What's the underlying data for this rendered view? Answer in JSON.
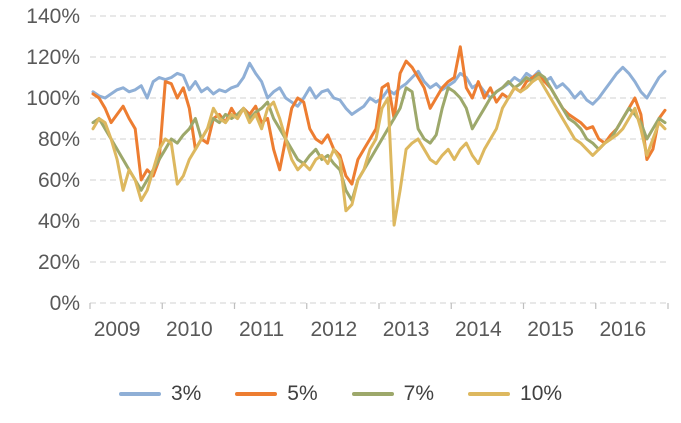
{
  "chart_data": {
    "type": "line",
    "title": "",
    "x_unit": "month",
    "x_range": [
      "2009-01",
      "2016-12"
    ],
    "x_tick_labels": [
      "2009",
      "2010",
      "2011",
      "2012",
      "2013",
      "2014",
      "2015",
      "2016"
    ],
    "ylim": [
      0,
      140
    ],
    "y_tick_step": 20,
    "y_tick_format": "percent",
    "y_tick_labels": [
      "0%",
      "20%",
      "40%",
      "60%",
      "80%",
      "100%",
      "120%",
      "140%"
    ],
    "grid": "horizontal-dashed",
    "gridline_color": "#d9d9d9",
    "axis_label_color": "#595959",
    "legend_position": "bottom",
    "series": [
      {
        "name": "3%",
        "color": "#8FAFD6",
        "values": [
          103,
          101,
          100,
          102,
          104,
          105,
          103,
          104,
          106,
          100,
          108,
          110,
          109,
          110,
          112,
          111,
          104,
          108,
          103,
          105,
          102,
          104,
          103,
          105,
          106,
          110,
          117,
          112,
          108,
          100,
          103,
          105,
          100,
          98,
          96,
          100,
          105,
          100,
          103,
          104,
          100,
          99,
          95,
          92,
          94,
          96,
          100,
          98,
          100,
          104,
          102,
          105,
          107,
          110,
          113,
          108,
          105,
          107,
          104,
          106,
          108,
          112,
          110,
          105,
          107,
          103,
          100,
          103,
          105,
          107,
          110,
          108,
          112,
          110,
          113,
          108,
          110,
          105,
          107,
          104,
          100,
          103,
          99,
          97,
          100,
          104,
          108,
          112,
          115,
          112,
          108,
          103,
          100,
          105,
          110,
          113
        ]
      },
      {
        "name": "5%",
        "color": "#ED7D31",
        "values": [
          102,
          100,
          95,
          88,
          92,
          96,
          90,
          85,
          60,
          65,
          62,
          70,
          108,
          107,
          100,
          105,
          95,
          75,
          80,
          78,
          90,
          92,
          88,
          95,
          90,
          95,
          92,
          96,
          88,
          90,
          75,
          65,
          80,
          95,
          100,
          98,
          85,
          80,
          78,
          82,
          75,
          72,
          62,
          58,
          70,
          75,
          80,
          85,
          105,
          107,
          90,
          112,
          118,
          115,
          110,
          105,
          95,
          100,
          105,
          108,
          110,
          125,
          105,
          100,
          108,
          100,
          105,
          98,
          102,
          100,
          105,
          103,
          108,
          110,
          112,
          108,
          105,
          100,
          95,
          92,
          90,
          88,
          85,
          86,
          80,
          78,
          82,
          85,
          90,
          95,
          100,
          92,
          70,
          75,
          90,
          94
        ]
      },
      {
        "name": "7%",
        "color": "#9DA86B",
        "values": [
          88,
          90,
          85,
          80,
          75,
          70,
          65,
          60,
          55,
          60,
          65,
          70,
          75,
          80,
          78,
          82,
          85,
          90,
          80,
          85,
          90,
          88,
          92,
          90,
          92,
          95,
          90,
          93,
          95,
          98,
          90,
          85,
          80,
          75,
          70,
          68,
          72,
          75,
          70,
          72,
          68,
          65,
          55,
          50,
          60,
          65,
          70,
          75,
          80,
          85,
          90,
          95,
          105,
          103,
          85,
          80,
          78,
          82,
          95,
          105,
          103,
          100,
          95,
          85,
          90,
          95,
          100,
          103,
          105,
          108,
          105,
          107,
          110,
          108,
          112,
          110,
          105,
          100,
          95,
          90,
          88,
          85,
          80,
          78,
          75,
          78,
          80,
          85,
          90,
          95,
          92,
          88,
          80,
          85,
          90,
          88
        ]
      },
      {
        "name": "10%",
        "color": "#DDB85F",
        "values": [
          85,
          90,
          88,
          80,
          70,
          55,
          65,
          60,
          50,
          55,
          65,
          75,
          80,
          78,
          58,
          62,
          70,
          75,
          80,
          85,
          95,
          90,
          88,
          92,
          90,
          95,
          88,
          92,
          85,
          95,
          98,
          90,
          80,
          70,
          65,
          68,
          65,
          70,
          72,
          68,
          75,
          70,
          45,
          48,
          60,
          65,
          75,
          80,
          95,
          100,
          38,
          55,
          75,
          78,
          80,
          75,
          70,
          68,
          72,
          75,
          70,
          75,
          78,
          72,
          68,
          75,
          80,
          85,
          95,
          100,
          105,
          103,
          105,
          108,
          110,
          105,
          100,
          95,
          90,
          85,
          80,
          78,
          75,
          72,
          75,
          78,
          80,
          82,
          85,
          90,
          95,
          85,
          72,
          80,
          88,
          85
        ]
      }
    ]
  }
}
